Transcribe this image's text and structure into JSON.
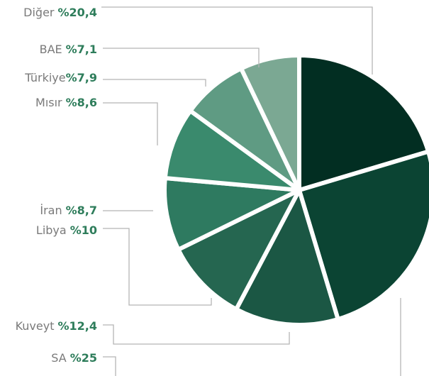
{
  "chart_data": {
    "type": "pie",
    "categories": [
      "Diğer",
      "SA",
      "Kuveyt",
      "Libya",
      "İran",
      "Mısır",
      "Türkiye",
      "BAE"
    ],
    "values": [
      20.4,
      25,
      12.4,
      10,
      8.7,
      8.6,
      7.9,
      7.1
    ],
    "value_labels": [
      "%20,4",
      "%25",
      "%12,4",
      "%10",
      "%8,7",
      "%8,6",
      "%7,9",
      "%7,1"
    ],
    "colors": [
      "#022e22",
      "#0b4433",
      "#1b5744",
      "#256650",
      "#2e7a60",
      "#3a8a6d",
      "#5f9b83",
      "#7ba893"
    ]
  }
}
